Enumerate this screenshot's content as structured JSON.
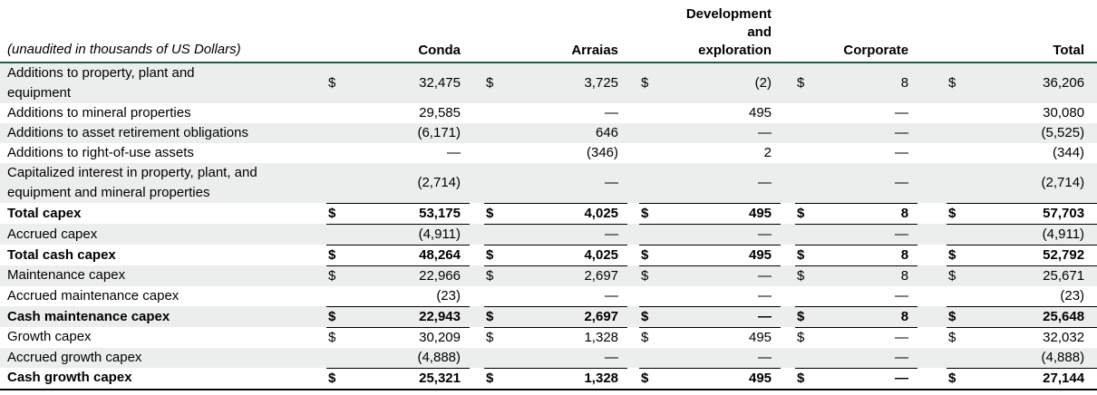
{
  "colors": {
    "shaded_row": "#ebeeec",
    "header_rule": "#265a4d",
    "rule": "#000000",
    "text": "#000000"
  },
  "table": {
    "unit_label": "(unaudited in thousands of US Dollars)",
    "currency_symbol": "$",
    "columns": [
      {
        "name": "Conda",
        "lines": [
          "Conda"
        ]
      },
      {
        "name": "Arraias",
        "lines": [
          "Arraias"
        ]
      },
      {
        "name": "Development and exploration",
        "lines": [
          "Development",
          "and",
          "exploration"
        ]
      },
      {
        "name": "Corporate",
        "lines": [
          "Corporate"
        ]
      },
      {
        "name": "Total",
        "lines": [
          "Total"
        ]
      }
    ],
    "rows": [
      {
        "label": "Additions to property, plant and\nequipment",
        "dollar": true,
        "bold": false,
        "shaded": true,
        "rule": "none",
        "values": [
          "32,475",
          "3,725",
          "(2)",
          "8",
          "36,206"
        ]
      },
      {
        "label": "Additions to mineral properties",
        "dollar": false,
        "bold": false,
        "shaded": false,
        "rule": "none",
        "values": [
          "29,585",
          "—",
          "495",
          "—",
          "30,080"
        ]
      },
      {
        "label": "Additions to asset retirement obligations",
        "dollar": false,
        "bold": false,
        "shaded": true,
        "rule": "none",
        "values": [
          "(6,171)",
          "646",
          "—",
          "—",
          "(5,525)"
        ]
      },
      {
        "label": "Additions to right-of-use assets",
        "dollar": false,
        "bold": false,
        "shaded": false,
        "rule": "none",
        "values": [
          "—",
          "(346)",
          "2",
          "—",
          "(344)"
        ]
      },
      {
        "label": "Capitalized interest in property, plant, and\nequipment and mineral properties",
        "dollar": false,
        "bold": false,
        "shaded": true,
        "rule": "numeric",
        "values": [
          "(2,714)",
          "—",
          "—",
          "—",
          "(2,714)"
        ]
      },
      {
        "label": "Total capex",
        "dollar": true,
        "bold": true,
        "shaded": false,
        "rule": "numeric",
        "values": [
          "53,175",
          "4,025",
          "495",
          "8",
          "57,703"
        ]
      },
      {
        "label": "Accrued capex",
        "dollar": false,
        "bold": false,
        "shaded": true,
        "rule": "numeric",
        "values": [
          "(4,911)",
          "—",
          "—",
          "—",
          "(4,911)"
        ]
      },
      {
        "label": "Total cash capex",
        "dollar": true,
        "bold": true,
        "shaded": false,
        "rule": "numeric",
        "values": [
          "48,264",
          "4,025",
          "495",
          "8",
          "52,792"
        ]
      },
      {
        "label": "Maintenance capex",
        "dollar": true,
        "bold": false,
        "shaded": true,
        "rule": "none",
        "values": [
          "22,966",
          "2,697",
          "—",
          "8",
          "25,671"
        ]
      },
      {
        "label": "Accrued maintenance capex",
        "dollar": false,
        "bold": false,
        "shaded": false,
        "rule": "numeric",
        "values": [
          "(23)",
          "—",
          "—",
          "—",
          "(23)"
        ]
      },
      {
        "label": "Cash maintenance capex",
        "dollar": true,
        "bold": true,
        "shaded": true,
        "rule": "numeric",
        "values": [
          "22,943",
          "2,697",
          "—",
          "8",
          "25,648"
        ]
      },
      {
        "label": "Growth capex",
        "dollar": true,
        "bold": false,
        "shaded": false,
        "rule": "none",
        "values": [
          "30,209",
          "1,328",
          "495",
          "—",
          "32,032"
        ]
      },
      {
        "label": "Accrued growth capex",
        "dollar": false,
        "bold": false,
        "shaded": true,
        "rule": "numeric",
        "values": [
          "(4,888)",
          "—",
          "—",
          "—",
          "(4,888)"
        ]
      },
      {
        "label": "Cash growth capex",
        "dollar": true,
        "bold": true,
        "shaded": false,
        "rule": "full",
        "values": [
          "25,321",
          "1,328",
          "495",
          "—",
          "27,144"
        ]
      }
    ]
  }
}
